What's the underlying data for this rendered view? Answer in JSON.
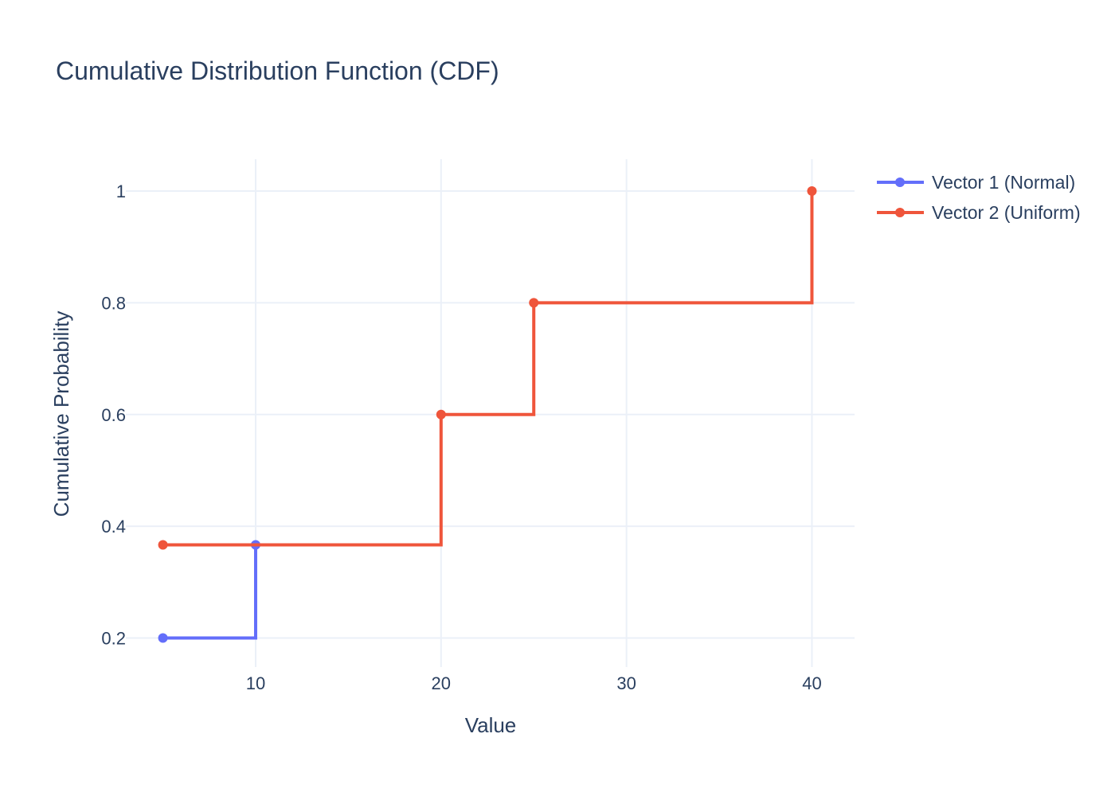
{
  "chart_data": {
    "type": "line",
    "line_shape": "step",
    "title": "Cumulative Distribution Function (CDF)",
    "xlabel": "Value",
    "ylabel": "Cumulative Probability",
    "xlim": [
      3,
      42.3
    ],
    "ylim": [
      0.148,
      1.057
    ],
    "x_ticks": [
      10,
      20,
      30,
      40
    ],
    "x_tick_labels": [
      "10",
      "20",
      "30",
      "40"
    ],
    "y_ticks": [
      0.2,
      0.4,
      0.6,
      0.8,
      1
    ],
    "y_tick_labels": [
      "0.2",
      "0.4",
      "0.6",
      "0.8",
      "1"
    ],
    "grid": true,
    "legend_position": "top-right",
    "series": [
      {
        "name": "Vector 1 (Normal)",
        "color": "#636efa",
        "x": [
          5,
          10
        ],
        "y": [
          0.2,
          0.3667
        ]
      },
      {
        "name": "Vector 2 (Uniform)",
        "color": "#ef553b",
        "x": [
          5,
          20,
          25,
          40
        ],
        "y": [
          0.3667,
          0.6,
          0.8,
          1.0
        ]
      }
    ]
  }
}
